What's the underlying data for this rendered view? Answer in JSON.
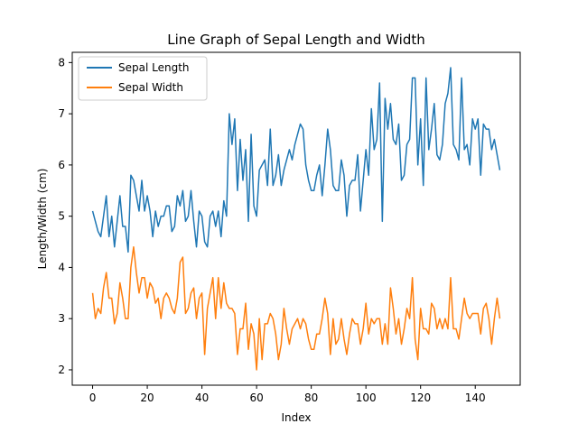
{
  "chart_data": {
    "type": "line",
    "title": "Line Graph of Sepal Length and Width",
    "xlabel": "Index",
    "ylabel": "Length/Width (cm)",
    "xlim": [
      -7.45,
      156.45
    ],
    "ylim": [
      1.7,
      8.2
    ],
    "xticks": [
      0,
      20,
      40,
      60,
      80,
      100,
      120,
      140
    ],
    "yticks": [
      2,
      3,
      4,
      5,
      6,
      7,
      8
    ],
    "grid": false,
    "legend_position": "top-left",
    "series": [
      {
        "name": "Sepal Length",
        "color": "#1f77b4",
        "values": [
          5.1,
          4.9,
          4.7,
          4.6,
          5.0,
          5.4,
          4.6,
          5.0,
          4.4,
          4.9,
          5.4,
          4.8,
          4.8,
          4.3,
          5.8,
          5.7,
          5.4,
          5.1,
          5.7,
          5.1,
          5.4,
          5.1,
          4.6,
          5.1,
          4.8,
          5.0,
          5.0,
          5.2,
          5.2,
          4.7,
          4.8,
          5.4,
          5.2,
          5.5,
          4.9,
          5.0,
          5.5,
          4.9,
          4.4,
          5.1,
          5.0,
          4.5,
          4.4,
          5.0,
          5.1,
          4.8,
          5.1,
          4.6,
          5.3,
          5.0,
          7.0,
          6.4,
          6.9,
          5.5,
          6.5,
          5.7,
          6.3,
          4.9,
          6.6,
          5.2,
          5.0,
          5.9,
          6.0,
          6.1,
          5.6,
          6.7,
          5.6,
          5.8,
          6.2,
          5.6,
          5.9,
          6.1,
          6.3,
          6.1,
          6.4,
          6.6,
          6.8,
          6.7,
          6.0,
          5.7,
          5.5,
          5.5,
          5.8,
          6.0,
          5.4,
          6.0,
          6.7,
          6.3,
          5.6,
          5.5,
          5.5,
          6.1,
          5.8,
          5.0,
          5.6,
          5.7,
          5.7,
          6.2,
          5.1,
          5.7,
          6.3,
          5.8,
          7.1,
          6.3,
          6.5,
          7.6,
          4.9,
          7.3,
          6.7,
          7.2,
          6.5,
          6.4,
          6.8,
          5.7,
          5.8,
          6.4,
          6.5,
          7.7,
          7.7,
          6.0,
          6.9,
          5.6,
          7.7,
          6.3,
          6.7,
          7.2,
          6.2,
          6.1,
          6.4,
          7.2,
          7.4,
          7.9,
          6.4,
          6.3,
          6.1,
          7.7,
          6.3,
          6.4,
          6.0,
          6.9,
          6.7,
          6.9,
          5.8,
          6.8,
          6.7,
          6.7,
          6.3,
          6.5,
          6.2,
          5.9
        ]
      },
      {
        "name": "Sepal Width",
        "color": "#ff7f0e",
        "values": [
          3.5,
          3.0,
          3.2,
          3.1,
          3.6,
          3.9,
          3.4,
          3.4,
          2.9,
          3.1,
          3.7,
          3.4,
          3.0,
          3.0,
          4.0,
          4.4,
          3.9,
          3.5,
          3.8,
          3.8,
          3.4,
          3.7,
          3.6,
          3.3,
          3.4,
          3.0,
          3.4,
          3.5,
          3.4,
          3.2,
          3.1,
          3.4,
          4.1,
          4.2,
          3.1,
          3.2,
          3.5,
          3.6,
          3.0,
          3.4,
          3.5,
          2.3,
          3.2,
          3.5,
          3.8,
          3.0,
          3.8,
          3.2,
          3.7,
          3.3,
          3.2,
          3.2,
          3.1,
          2.3,
          2.8,
          2.8,
          3.3,
          2.4,
          2.9,
          2.7,
          2.0,
          3.0,
          2.2,
          2.9,
          2.9,
          3.1,
          3.0,
          2.7,
          2.2,
          2.5,
          3.2,
          2.8,
          2.5,
          2.8,
          2.9,
          3.0,
          2.8,
          3.0,
          2.9,
          2.6,
          2.4,
          2.4,
          2.7,
          2.7,
          3.0,
          3.4,
          3.1,
          2.3,
          3.0,
          2.5,
          2.6,
          3.0,
          2.6,
          2.3,
          2.7,
          3.0,
          2.9,
          2.9,
          2.5,
          2.8,
          3.3,
          2.7,
          3.0,
          2.9,
          3.0,
          3.0,
          2.5,
          2.9,
          2.5,
          3.6,
          3.2,
          2.7,
          3.0,
          2.5,
          2.8,
          3.2,
          3.0,
          3.8,
          2.6,
          2.2,
          3.2,
          2.8,
          2.8,
          2.7,
          3.3,
          3.2,
          2.8,
          3.0,
          2.8,
          3.0,
          2.8,
          3.8,
          2.8,
          2.8,
          2.6,
          3.0,
          3.4,
          3.1,
          3.0,
          3.1,
          3.1,
          3.1,
          2.7,
          3.2,
          3.3,
          3.0,
          2.5,
          3.0,
          3.4,
          3.0
        ]
      }
    ]
  }
}
